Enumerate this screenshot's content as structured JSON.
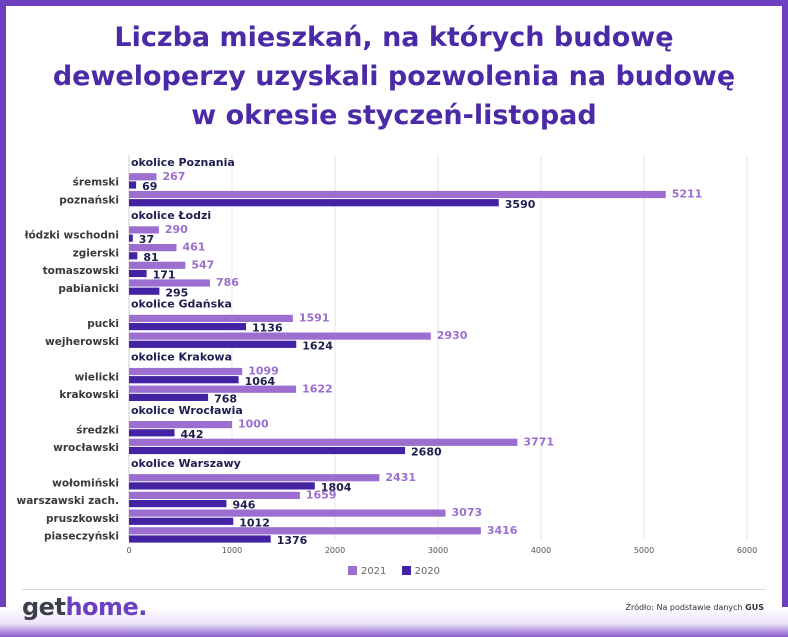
{
  "title_lines": [
    "Liczba mieszkań, na których budowę",
    "deweloperzy uzyskali pozwolenia na budowę",
    "w okresie styczeń-listopad"
  ],
  "colors": {
    "2021": "#9b6ed0",
    "2020": "#4323a3",
    "title": "#4b2aa8",
    "frame": "#6d3fc1",
    "group_label": "#1e1e50"
  },
  "chart_data": {
    "type": "bar",
    "orientation": "horizontal",
    "xlim": [
      0,
      6000
    ],
    "xticks": [
      0,
      1000,
      2000,
      3000,
      4000,
      5000,
      6000
    ],
    "grid": true,
    "legend": {
      "position": "bottom",
      "entries": [
        "2021",
        "2020"
      ]
    },
    "series": [
      {
        "name": "2021",
        "color": "#9b6ed0"
      },
      {
        "name": "2020",
        "color": "#4323a3"
      }
    ],
    "groups": [
      {
        "label": "okolice Poznania",
        "rows": [
          {
            "category": "śremski",
            "v2021": 267,
            "v2020": 69
          },
          {
            "category": "poznański",
            "v2021": 5211,
            "v2020": 3590
          }
        ]
      },
      {
        "label": "okolice Łodzi",
        "rows": [
          {
            "category": "łódzki wschodni",
            "v2021": 290,
            "v2020": 37
          },
          {
            "category": "zgierski",
            "v2021": 461,
            "v2020": 81
          },
          {
            "category": "tomaszowski",
            "v2021": 547,
            "v2020": 171
          },
          {
            "category": "pabianicki",
            "v2021": 786,
            "v2020": 295
          }
        ]
      },
      {
        "label": "okolice Gdańska",
        "rows": [
          {
            "category": "pucki",
            "v2021": 1591,
            "v2020": 1136
          },
          {
            "category": "wejherowski",
            "v2021": 2930,
            "v2020": 1624
          }
        ]
      },
      {
        "label": "okolice Krakowa",
        "rows": [
          {
            "category": "wielicki",
            "v2021": 1099,
            "v2020": 1064
          },
          {
            "category": "krakowski",
            "v2021": 1622,
            "v2020": 768
          }
        ]
      },
      {
        "label": "okolice Wrocławia",
        "rows": [
          {
            "category": "średzki",
            "v2021": 1000,
            "v2020": 442
          },
          {
            "category": "wrocławski",
            "v2021": 3771,
            "v2020": 2680
          }
        ]
      },
      {
        "label": "okolice Warszawy",
        "rows": [
          {
            "category": "wołomiński",
            "v2021": 2431,
            "v2020": 1804
          },
          {
            "category": "warszawski zach.",
            "v2021": 1659,
            "v2020": 946
          },
          {
            "category": "pruszkowski",
            "v2021": 3073,
            "v2020": 1012
          },
          {
            "category": "piaseczyński",
            "v2021": 3416,
            "v2020": 1376
          }
        ]
      }
    ]
  },
  "logo": {
    "part1": "get",
    "part2": "home."
  },
  "source": {
    "prefix": "Źródło: Na podstawie danych ",
    "bold": "GUS"
  }
}
